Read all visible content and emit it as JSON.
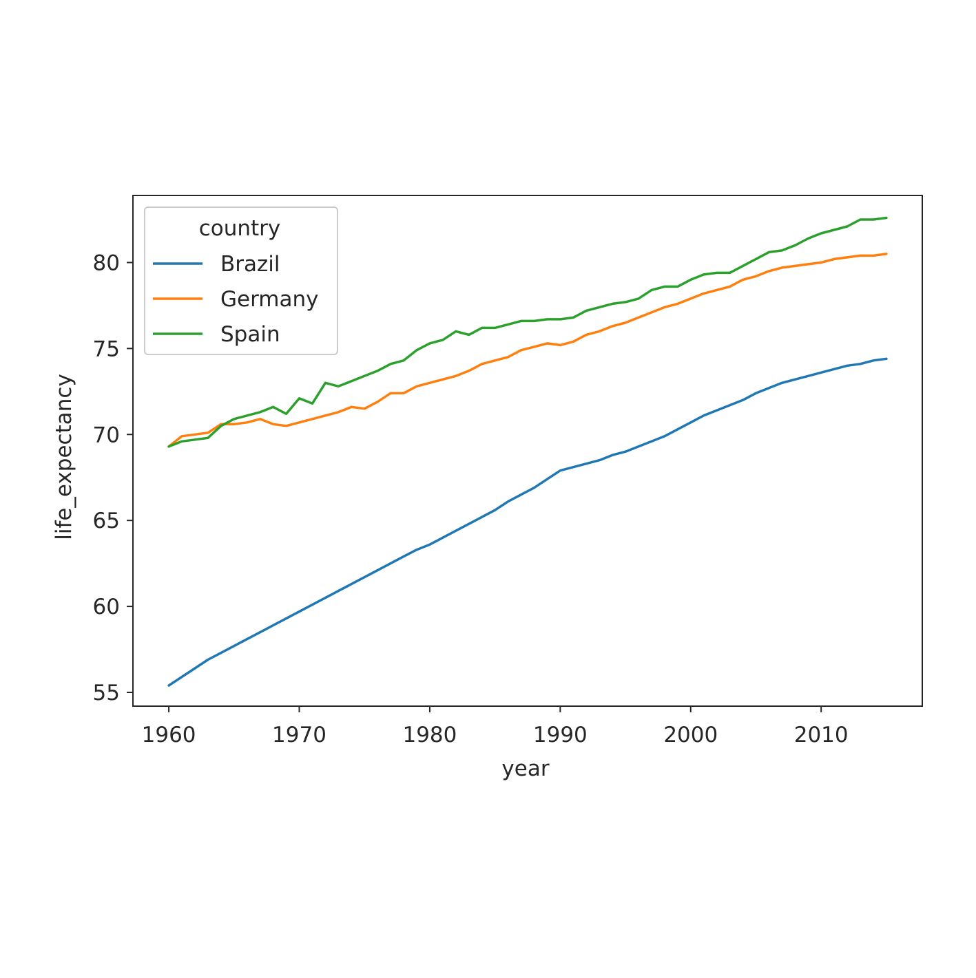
{
  "chart_data": {
    "type": "line",
    "xlabel": "year",
    "ylabel": "life_expectancy",
    "xlim": [
      1957.25,
      2017.75
    ],
    "ylim": [
      54.2,
      83.9
    ],
    "x_ticks": [
      1960,
      1970,
      1980,
      1990,
      2000,
      2010
    ],
    "x_tick_labels": [
      "1960",
      "1970",
      "1980",
      "1990",
      "2000",
      "2010"
    ],
    "y_ticks": [
      55,
      60,
      65,
      70,
      75,
      80
    ],
    "y_tick_labels": [
      "55",
      "60",
      "65",
      "70",
      "75",
      "80"
    ],
    "grid": false,
    "legend": {
      "title": "country",
      "placement": "upper-left"
    },
    "x": [
      1960,
      1961,
      1962,
      1963,
      1964,
      1965,
      1966,
      1967,
      1968,
      1969,
      1970,
      1971,
      1972,
      1973,
      1974,
      1975,
      1976,
      1977,
      1978,
      1979,
      1980,
      1981,
      1982,
      1983,
      1984,
      1985,
      1986,
      1987,
      1988,
      1989,
      1990,
      1991,
      1992,
      1993,
      1994,
      1995,
      1996,
      1997,
      1998,
      1999,
      2000,
      2001,
      2002,
      2003,
      2004,
      2005,
      2006,
      2007,
      2008,
      2009,
      2010,
      2011,
      2012,
      2013,
      2014,
      2015
    ],
    "series": [
      {
        "name": "Brazil",
        "color": "#1f77b4",
        "values": [
          55.4,
          55.9,
          56.4,
          56.9,
          57.3,
          57.7,
          58.1,
          58.5,
          58.9,
          59.3,
          59.7,
          60.1,
          60.5,
          60.9,
          61.3,
          61.7,
          62.1,
          62.5,
          62.9,
          63.3,
          63.6,
          64.0,
          64.4,
          64.8,
          65.2,
          65.6,
          66.1,
          66.5,
          66.9,
          67.4,
          67.9,
          68.1,
          68.3,
          68.5,
          68.8,
          69.0,
          69.3,
          69.6,
          69.9,
          70.3,
          70.7,
          71.1,
          71.4,
          71.7,
          72.0,
          72.4,
          72.7,
          73.0,
          73.2,
          73.4,
          73.6,
          73.8,
          74.0,
          74.1,
          74.3,
          74.4
        ]
      },
      {
        "name": "Germany",
        "color": "#ff7f0e",
        "values": [
          69.3,
          69.9,
          70.0,
          70.1,
          70.6,
          70.6,
          70.7,
          70.9,
          70.6,
          70.5,
          70.7,
          70.9,
          71.1,
          71.3,
          71.6,
          71.5,
          71.9,
          72.4,
          72.4,
          72.8,
          73.0,
          73.2,
          73.4,
          73.7,
          74.1,
          74.3,
          74.5,
          74.9,
          75.1,
          75.3,
          75.2,
          75.4,
          75.8,
          76.0,
          76.3,
          76.5,
          76.8,
          77.1,
          77.4,
          77.6,
          77.9,
          78.2,
          78.4,
          78.6,
          79.0,
          79.2,
          79.5,
          79.7,
          79.8,
          79.9,
          80.0,
          80.2,
          80.3,
          80.4,
          80.4,
          80.5
        ]
      },
      {
        "name": "Spain",
        "color": "#2ca02c",
        "values": [
          69.3,
          69.6,
          69.7,
          69.8,
          70.5,
          70.9,
          71.1,
          71.3,
          71.6,
          71.2,
          72.1,
          71.8,
          73.0,
          72.8,
          73.1,
          73.4,
          73.7,
          74.1,
          74.3,
          74.9,
          75.3,
          75.5,
          76.0,
          75.8,
          76.2,
          76.2,
          76.4,
          76.6,
          76.6,
          76.7,
          76.7,
          76.8,
          77.2,
          77.4,
          77.6,
          77.7,
          77.9,
          78.4,
          78.6,
          78.6,
          79.0,
          79.3,
          79.4,
          79.4,
          79.8,
          80.2,
          80.6,
          80.7,
          81.0,
          81.4,
          81.7,
          81.9,
          82.1,
          82.5,
          82.5,
          82.6
        ]
      }
    ]
  }
}
